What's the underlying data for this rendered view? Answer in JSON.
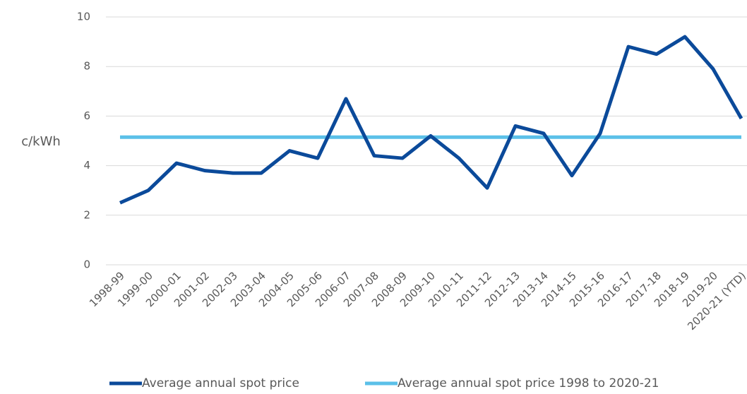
{
  "chart_data": {
    "type": "line",
    "y_label": "c/kWh",
    "categories": [
      "1998-99",
      "1999-00",
      "2000-01",
      "2001-02",
      "2002-03",
      "2003-04",
      "2004-05",
      "2005-06",
      "2006-07",
      "2007-08",
      "2008-09",
      "2009-10",
      "2010-11",
      "2011-12",
      "2012-13",
      "2013-14",
      "2014-15",
      "2015-16",
      "2016-17",
      "2017-18",
      "2018-19",
      "2019-20",
      "2020-21 (YTD)"
    ],
    "series": [
      {
        "name": "Average annual spot price",
        "color": "#0b4a9a",
        "values": [
          2.5,
          3.0,
          4.1,
          3.8,
          3.7,
          3.7,
          4.6,
          4.3,
          6.7,
          4.4,
          4.3,
          5.2,
          4.3,
          3.1,
          5.6,
          5.3,
          3.6,
          5.3,
          8.8,
          8.5,
          9.2,
          7.9,
          5.9
        ]
      },
      {
        "name": "Average annual spot price 1998 to 2020-21",
        "color": "#5bc0e8",
        "values": [
          5.15,
          5.15,
          5.15,
          5.15,
          5.15,
          5.15,
          5.15,
          5.15,
          5.15,
          5.15,
          5.15,
          5.15,
          5.15,
          5.15,
          5.15,
          5.15,
          5.15,
          5.15,
          5.15,
          5.15,
          5.15,
          5.15,
          5.15
        ]
      }
    ],
    "ylim": [
      0,
      10
    ],
    "yticks": [
      0,
      2,
      4,
      6,
      8,
      10
    ],
    "grid": true
  }
}
